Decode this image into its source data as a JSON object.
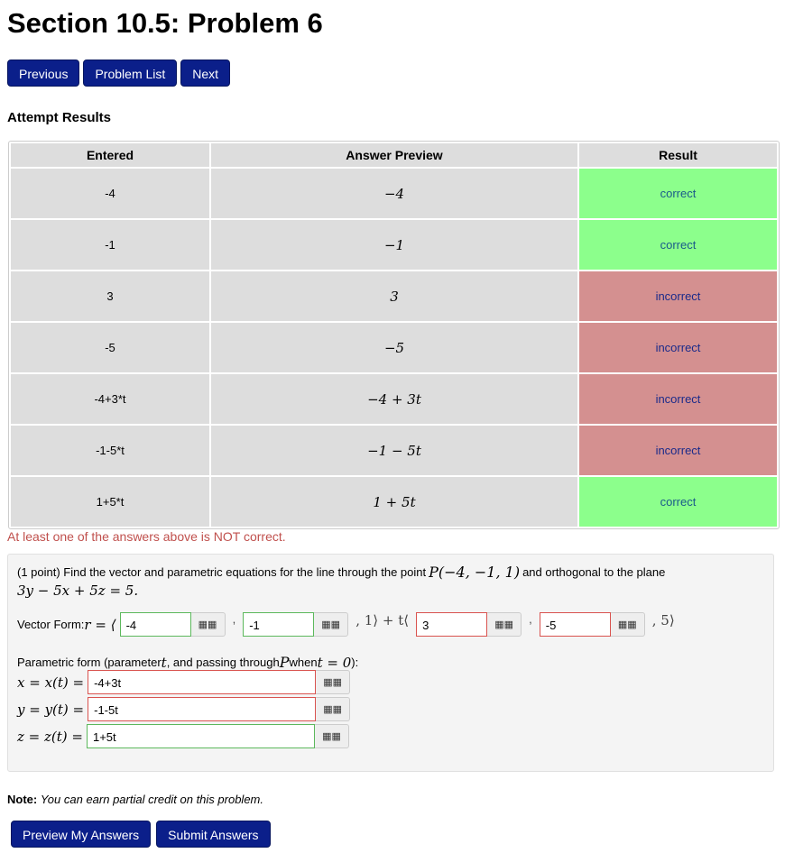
{
  "title": "Section 10.5: Problem 6",
  "nav": {
    "previous": "Previous",
    "list": "Problem List",
    "next": "Next"
  },
  "results": {
    "heading": "Attempt Results",
    "columns": [
      "Entered",
      "Answer Preview",
      "Result"
    ],
    "rows": [
      {
        "entered": "-4",
        "preview": "−4",
        "result": "correct"
      },
      {
        "entered": "-1",
        "preview": "−1",
        "result": "correct"
      },
      {
        "entered": "3",
        "preview": "3",
        "result": "incorrect"
      },
      {
        "entered": "-5",
        "preview": "−5",
        "result": "incorrect"
      },
      {
        "entered": "-4+3*t",
        "preview": "−4 + 3t",
        "result": "incorrect"
      },
      {
        "entered": "-1-5*t",
        "preview": "−1 − 5t",
        "result": "incorrect"
      },
      {
        "entered": "1+5*t",
        "preview": "1 + 5t",
        "result": "correct"
      }
    ]
  },
  "warning": "At least one of the answers above is NOT correct.",
  "problem": {
    "text": "(1 point) Find the vector and parametric equations for the line through the point ",
    "point": "P(−4, −1, 1)",
    "text2": " and orthogonal to the plane",
    "plane": "3y − 5x + 5z = 5.",
    "vector_label": "Vector Form: ",
    "r_eq": "r = ⟨",
    "comma": ",",
    "mid": ", 1⟩ + t⟨",
    "end": ", 5⟩",
    "vector_inputs": [
      {
        "value": "-4",
        "status": "correct"
      },
      {
        "value": "-1",
        "status": "correct"
      },
      {
        "value": "3",
        "status": "incorrect"
      },
      {
        "value": "-5",
        "status": "incorrect"
      }
    ],
    "param_label": "Parametric form (parameter ",
    "param_t": "t",
    "param_mid": ", and passing through ",
    "param_P": "P",
    "param_when": " when ",
    "param_t0": "t = 0",
    "param_end": "):",
    "param_inputs": [
      {
        "label": "x = x(t) =",
        "value": "-4+3t",
        "status": "incorrect"
      },
      {
        "label": "y = y(t) =",
        "value": "-1-5t",
        "status": "incorrect"
      },
      {
        "label": "z = z(t) =",
        "value": "1+5t",
        "status": "correct"
      }
    ],
    "keyboard_icon": "grid-icon"
  },
  "note": {
    "label": "Note:",
    "text": "You can earn partial credit on this problem."
  },
  "actions": {
    "preview": "Preview My Answers",
    "submit": "Submit Answers"
  }
}
